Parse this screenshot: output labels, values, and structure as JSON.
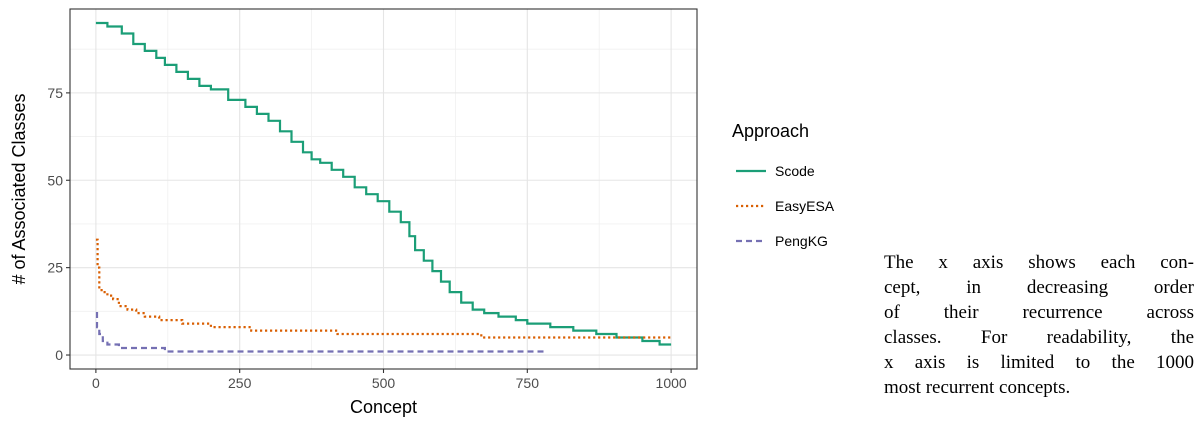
{
  "chart_data": {
    "type": "line",
    "xlabel": "Concept",
    "ylabel": "# of Associated Classes",
    "xlim": [
      -45,
      1045
    ],
    "ylim": [
      -4,
      99
    ],
    "x_ticks": [
      0,
      250,
      500,
      750,
      1000
    ],
    "y_ticks": [
      0,
      25,
      50,
      75
    ],
    "x_tick_labels": [
      "0",
      "250",
      "500",
      "750",
      "1000"
    ],
    "y_tick_labels": [
      "0",
      "25",
      "50",
      "75"
    ],
    "grid": true,
    "legend": {
      "title": "Approach",
      "placement": "right"
    },
    "series": [
      {
        "name": "Scode",
        "color": "#1b9e77",
        "line_style": "solid",
        "points": [
          [
            0,
            95
          ],
          [
            20,
            94
          ],
          [
            45,
            92
          ],
          [
            65,
            89
          ],
          [
            85,
            87
          ],
          [
            105,
            85
          ],
          [
            120,
            83
          ],
          [
            140,
            81
          ],
          [
            160,
            79
          ],
          [
            180,
            77
          ],
          [
            200,
            76
          ],
          [
            230,
            73
          ],
          [
            260,
            71
          ],
          [
            280,
            69
          ],
          [
            300,
            67
          ],
          [
            320,
            64
          ],
          [
            340,
            61
          ],
          [
            360,
            58
          ],
          [
            375,
            56
          ],
          [
            390,
            55
          ],
          [
            410,
            53
          ],
          [
            430,
            51
          ],
          [
            450,
            48
          ],
          [
            470,
            46
          ],
          [
            490,
            44
          ],
          [
            510,
            41
          ],
          [
            530,
            38
          ],
          [
            545,
            34
          ],
          [
            555,
            30
          ],
          [
            570,
            27
          ],
          [
            585,
            24
          ],
          [
            600,
            21
          ],
          [
            615,
            18
          ],
          [
            635,
            15
          ],
          [
            655,
            13
          ],
          [
            675,
            12
          ],
          [
            700,
            11
          ],
          [
            730,
            10
          ],
          [
            750,
            9
          ],
          [
            790,
            8
          ],
          [
            830,
            7
          ],
          [
            870,
            6
          ],
          [
            905,
            5
          ],
          [
            950,
            4
          ],
          [
            980,
            3
          ],
          [
            1000,
            3
          ]
        ]
      },
      {
        "name": "EasyESA",
        "color": "#d95f02",
        "line_style": "dotted",
        "points": [
          [
            0,
            33
          ],
          [
            3,
            25
          ],
          [
            6,
            19
          ],
          [
            10,
            18
          ],
          [
            20,
            17
          ],
          [
            30,
            16
          ],
          [
            40,
            14
          ],
          [
            55,
            13
          ],
          [
            70,
            12
          ],
          [
            85,
            11
          ],
          [
            110,
            10
          ],
          [
            150,
            9
          ],
          [
            200,
            8
          ],
          [
            270,
            7
          ],
          [
            420,
            6
          ],
          [
            570,
            6
          ],
          [
            670,
            5
          ],
          [
            1000,
            5
          ]
        ]
      },
      {
        "name": "PengKG",
        "color": "#7570b3",
        "line_style": "dashed",
        "points": [
          [
            0,
            12
          ],
          [
            2,
            8
          ],
          [
            6,
            6
          ],
          [
            12,
            4
          ],
          [
            20,
            3
          ],
          [
            40,
            2
          ],
          [
            120,
            1
          ],
          [
            780,
            1
          ]
        ]
      }
    ]
  },
  "caption": {
    "lines": [
      "The x axis shows each con-",
      "cept, in decreasing order",
      "of their recurrence across",
      "classes. For readability, the",
      "x axis is limited to the 1000",
      "most recurrent concepts."
    ]
  }
}
